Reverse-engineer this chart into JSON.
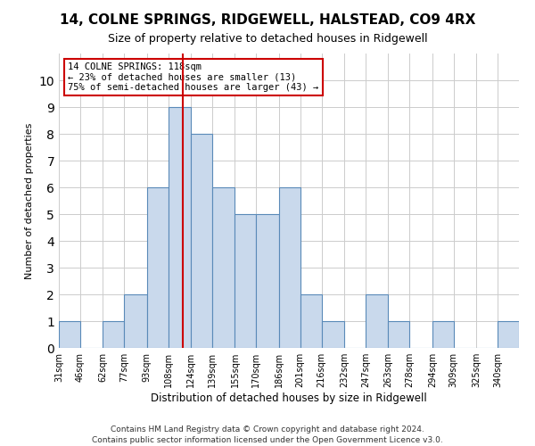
{
  "title": "14, COLNE SPRINGS, RIDGEWELL, HALSTEAD, CO9 4RX",
  "subtitle": "Size of property relative to detached houses in Ridgewell",
  "xlabel": "Distribution of detached houses by size in Ridgewell",
  "ylabel": "Number of detached properties",
  "footnote1": "Contains HM Land Registry data © Crown copyright and database right 2024.",
  "footnote2": "Contains public sector information licensed under the Open Government Licence v3.0.",
  "bin_labels": [
    "31sqm",
    "46sqm",
    "62sqm",
    "77sqm",
    "93sqm",
    "108sqm",
    "124sqm",
    "139sqm",
    "155sqm",
    "170sqm",
    "186sqm",
    "201sqm",
    "216sqm",
    "232sqm",
    "247sqm",
    "263sqm",
    "278sqm",
    "294sqm",
    "309sqm",
    "325sqm",
    "340sqm"
  ],
  "bar_values": [
    1,
    0,
    1,
    2,
    6,
    9,
    8,
    6,
    5,
    5,
    6,
    2,
    1,
    0,
    2,
    1,
    0,
    1,
    0,
    0,
    1
  ],
  "bar_color": "#c9d9ec",
  "bar_edge_color": "#5a8ab8",
  "grid_color": "#cccccc",
  "vline_x": 118,
  "vline_color": "#cc0000",
  "annotation_text": "14 COLNE SPRINGS: 118sqm\n← 23% of detached houses are smaller (13)\n75% of semi-detached houses are larger (43) →",
  "annotation_box_color": "#cc0000",
  "ylim": [
    0,
    11
  ],
  "yticks": [
    0,
    1,
    2,
    3,
    4,
    5,
    6,
    7,
    8,
    9,
    10,
    11
  ],
  "bin_edges": [
    31,
    46,
    62,
    77,
    93,
    108,
    124,
    139,
    155,
    170,
    186,
    201,
    216,
    232,
    247,
    263,
    278,
    294,
    309,
    325,
    340,
    355
  ]
}
